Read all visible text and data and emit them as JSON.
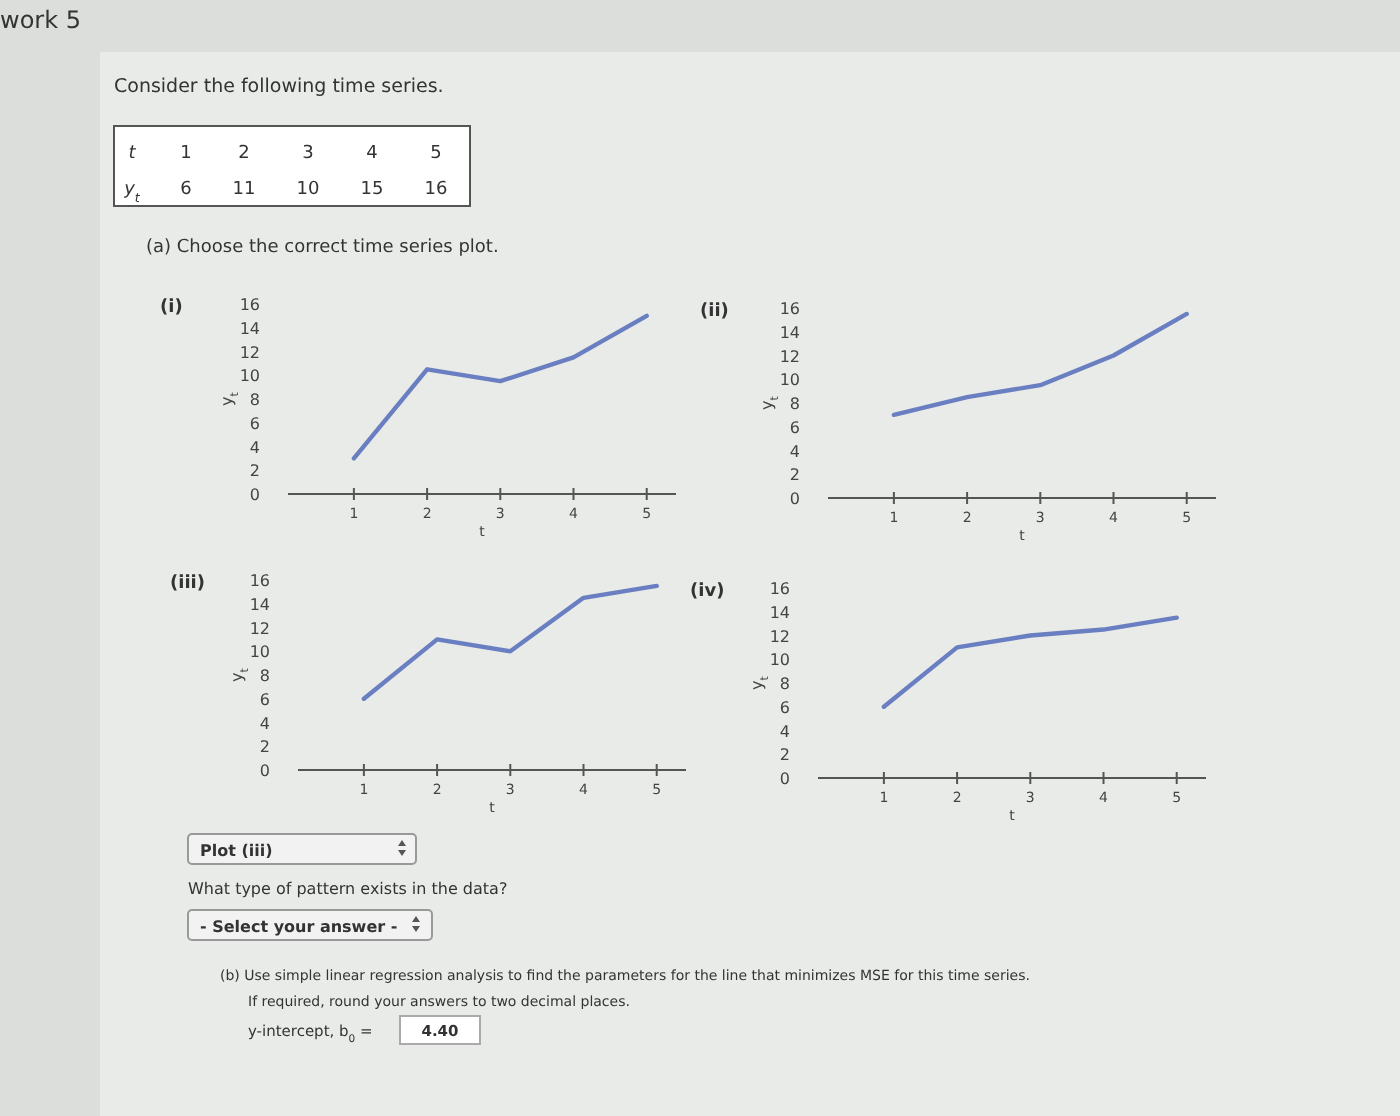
{
  "chart_data": [
    {
      "type": "other",
      "title": "Consider the following time series.",
      "annotations": [
        "work 5",
        "(a) Choose the correct time series plot."
      ]
    },
    {
      "type": "heatmap",
      "xlabel": "t",
      "categories": [
        "1",
        "2",
        "3",
        "4",
        "5"
      ],
      "y_categories": [
        "y$_{t}$"
      ],
      "cells": [
        [
          6,
          11,
          10,
          15,
          16
        ]
      ],
      "data_labels": true
    },
    {
      "type": "line",
      "title": "(i)",
      "xlabel": "t",
      "ylabel": "y$_{t}$",
      "x": [
        1,
        2,
        3,
        4,
        5
      ],
      "xlim": [
        0.1,
        5.4
      ],
      "xticks": [
        1,
        2,
        3,
        4,
        5
      ],
      "ylim": [
        0,
        16
      ],
      "yticks": [
        0,
        2,
        4,
        6,
        8,
        10,
        12,
        14,
        16
      ],
      "series": [
        {
          "color": "#6a7fc1",
          "values": [
            3,
            10.5,
            9.5,
            11.5,
            15
          ]
        }
      ]
    },
    {
      "type": "line",
      "title": "(ii)",
      "xlabel": "t",
      "ylabel": "y$_{t}$",
      "x": [
        1,
        2,
        3,
        4,
        5
      ],
      "xlim": [
        0.1,
        5.4
      ],
      "xticks": [
        1,
        2,
        3,
        4,
        5
      ],
      "ylim": [
        0,
        16
      ],
      "yticks": [
        0,
        2,
        4,
        6,
        8,
        10,
        12,
        14,
        16
      ],
      "series": [
        {
          "color": "#6a7fc1",
          "values": [
            7,
            8.5,
            9.5,
            12,
            15.5
          ]
        }
      ]
    },
    {
      "type": "line",
      "title": "(iii)",
      "xlabel": "t",
      "ylabel": "y$_{t}$",
      "x": [
        1,
        2,
        3,
        4,
        5
      ],
      "xlim": [
        0.1,
        5.4
      ],
      "xticks": [
        1,
        2,
        3,
        4,
        5
      ],
      "ylim": [
        0,
        16
      ],
      "yticks": [
        0,
        2,
        4,
        6,
        8,
        10,
        12,
        14,
        16
      ],
      "series": [
        {
          "color": "#6a7fc1",
          "values": [
            6,
            11,
            10,
            14.5,
            15.5
          ]
        }
      ]
    },
    {
      "type": "line",
      "title": "(iv)",
      "xlabel": "t",
      "ylabel": "y$_{t}$",
      "x": [
        1,
        2,
        3,
        4,
        5
      ],
      "xlim": [
        0.1,
        5.4
      ],
      "xticks": [
        1,
        2,
        3,
        4,
        5
      ],
      "ylim": [
        0,
        16
      ],
      "yticks": [
        0,
        2,
        4,
        6,
        8,
        10,
        12,
        14,
        16
      ],
      "series": [
        {
          "color": "#6a7fc1",
          "values": [
            6,
            11,
            12,
            12.5,
            13.5
          ]
        }
      ]
    },
    {
      "type": "other",
      "annotations": [
        "Plot (iii)",
        "What type of pattern exists in the data?",
        "- Select your answer -",
        "(b) Use simple linear regression analysis to find the parameters for the line that minimizes MSE for this time series.",
        "If required, round your answers to two decimal places.",
        "y-intercept, b$_{0}$ =",
        "4.40"
      ]
    }
  ]
}
